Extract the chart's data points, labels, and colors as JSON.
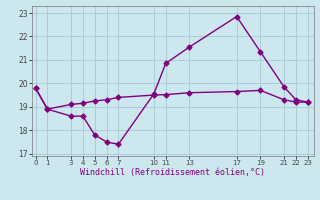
{
  "xlabel": "Windchill (Refroidissement éolien,°C)",
  "background_color": "#cce8ee",
  "grid_color": "#aacdd6",
  "line_color": "#800080",
  "series1_x": [
    0,
    1,
    3,
    4,
    5,
    6,
    7,
    10,
    11,
    13,
    17,
    19,
    21,
    22,
    23
  ],
  "series1_y": [
    19.8,
    18.9,
    18.6,
    18.6,
    17.8,
    17.5,
    17.4,
    19.55,
    20.85,
    21.55,
    22.85,
    21.35,
    19.85,
    19.3,
    19.2
  ],
  "series2_x": [
    0,
    1,
    3,
    4,
    5,
    6,
    7,
    10,
    11,
    13,
    17,
    19,
    21,
    22,
    23
  ],
  "series2_y": [
    19.8,
    18.9,
    19.1,
    19.15,
    19.25,
    19.3,
    19.4,
    19.5,
    19.52,
    19.6,
    19.65,
    19.7,
    19.3,
    19.2,
    19.2
  ],
  "xlim": [
    -0.3,
    23.5
  ],
  "ylim": [
    16.9,
    23.3
  ],
  "xticks": [
    0,
    1,
    3,
    4,
    5,
    6,
    7,
    10,
    11,
    13,
    17,
    19,
    21,
    22,
    23
  ],
  "yticks": [
    17,
    18,
    19,
    20,
    21,
    22,
    23
  ]
}
